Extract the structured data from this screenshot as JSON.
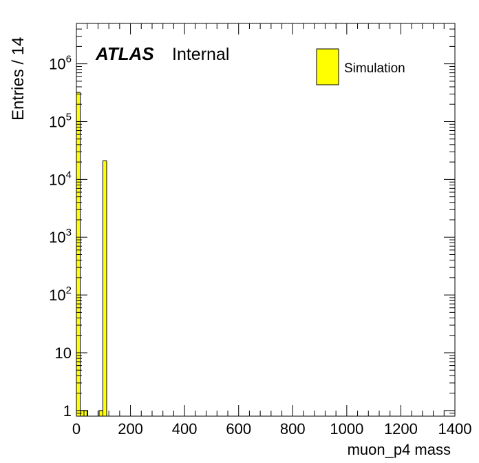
{
  "atlas": {
    "label": "ATLAS",
    "status": "Internal"
  },
  "legend": {
    "entries": [
      {
        "label": "Simulation",
        "color": "#ffff00"
      }
    ]
  },
  "chart_data": {
    "type": "bar",
    "title": "",
    "xlabel": "muon_p4 mass",
    "ylabel": "Entries / 14",
    "xlim": [
      0,
      1400
    ],
    "ylim": [
      0.8,
      5000000
    ],
    "y_log_scale": true,
    "bin_width": 14,
    "x_tick_labels": [
      "0",
      "200",
      "400",
      "600",
      "800",
      "1000",
      "1200",
      "1400"
    ],
    "y_tick_labels": [
      {
        "base": "1",
        "exp": ""
      },
      {
        "base": "10",
        "exp": ""
      },
      {
        "base": "10",
        "exp": "2"
      },
      {
        "base": "10",
        "exp": "3"
      },
      {
        "base": "10",
        "exp": "4"
      },
      {
        "base": "10",
        "exp": "5"
      },
      {
        "base": "10",
        "exp": "6"
      }
    ],
    "series": [
      {
        "name": "Simulation",
        "color": "#ffff00",
        "bins": [
          {
            "x_low": 0,
            "x_high": 14,
            "value": 320000
          },
          {
            "x_low": 14,
            "x_high": 28,
            "value": 1
          },
          {
            "x_low": 28,
            "x_high": 42,
            "value": 1
          },
          {
            "x_low": 84,
            "x_high": 98,
            "value": 1
          },
          {
            "x_low": 98,
            "x_high": 112,
            "value": 21000
          }
        ]
      }
    ],
    "grid": false,
    "legend_position": "top-right"
  }
}
